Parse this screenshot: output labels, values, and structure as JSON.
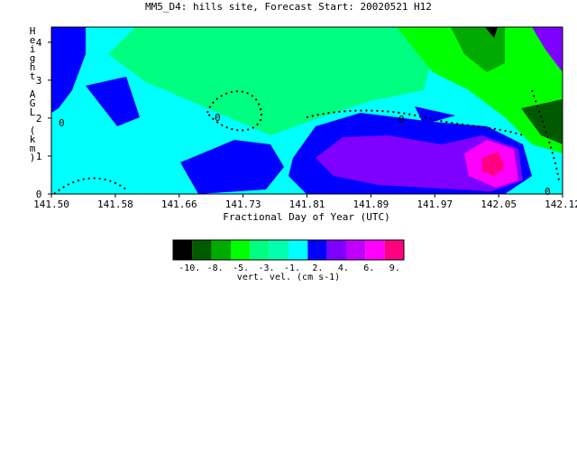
{
  "chart_data": {
    "type": "heatmap",
    "title": "MM5_D4: hills site,  Forecast Start: 20020521 H12",
    "xlabel": "Fractional Day of Year (UTC)",
    "ylabel": "Height AGL (km)",
    "x_ticks": [
      "141.50",
      "141.58",
      "141.66",
      "141.73",
      "141.81",
      "141.89",
      "141.97",
      "142.05",
      "142.12"
    ],
    "y_ticks": [
      "0",
      "1",
      "2",
      "3",
      "4"
    ],
    "xlim": [
      141.5,
      142.12
    ],
    "ylim": [
      0,
      4.4
    ],
    "colorbar": {
      "label": "vert. vel. (cm s-1)",
      "tick_labels": [
        "-10.",
        "-8.",
        "-5.",
        "-3.",
        "-1.",
        "2.",
        "4.",
        "6.",
        "9."
      ],
      "colors": [
        "#000000",
        "#005a00",
        "#00aa00",
        "#00ff00",
        "#00ff80",
        "#00ffb0",
        "#00ffff",
        "#0000ff",
        "#8000ff",
        "#c000ff",
        "#ff00ff",
        "#ff0080"
      ]
    },
    "contour_label": "0",
    "regions": [
      {
        "name": "background-cyan",
        "color": "#00ffff"
      },
      {
        "name": "green-upper",
        "color": "#00ff80"
      },
      {
        "name": "blue-left",
        "color": "#0000ff"
      },
      {
        "name": "blue-mid",
        "color": "#0000ff"
      },
      {
        "name": "purple-core",
        "color": "#8000ff"
      },
      {
        "name": "magenta-core",
        "color": "#ff00ff"
      },
      {
        "name": "pink-core",
        "color": "#ff0080"
      },
      {
        "name": "dark-green-right",
        "color": "#00aa00"
      }
    ]
  }
}
